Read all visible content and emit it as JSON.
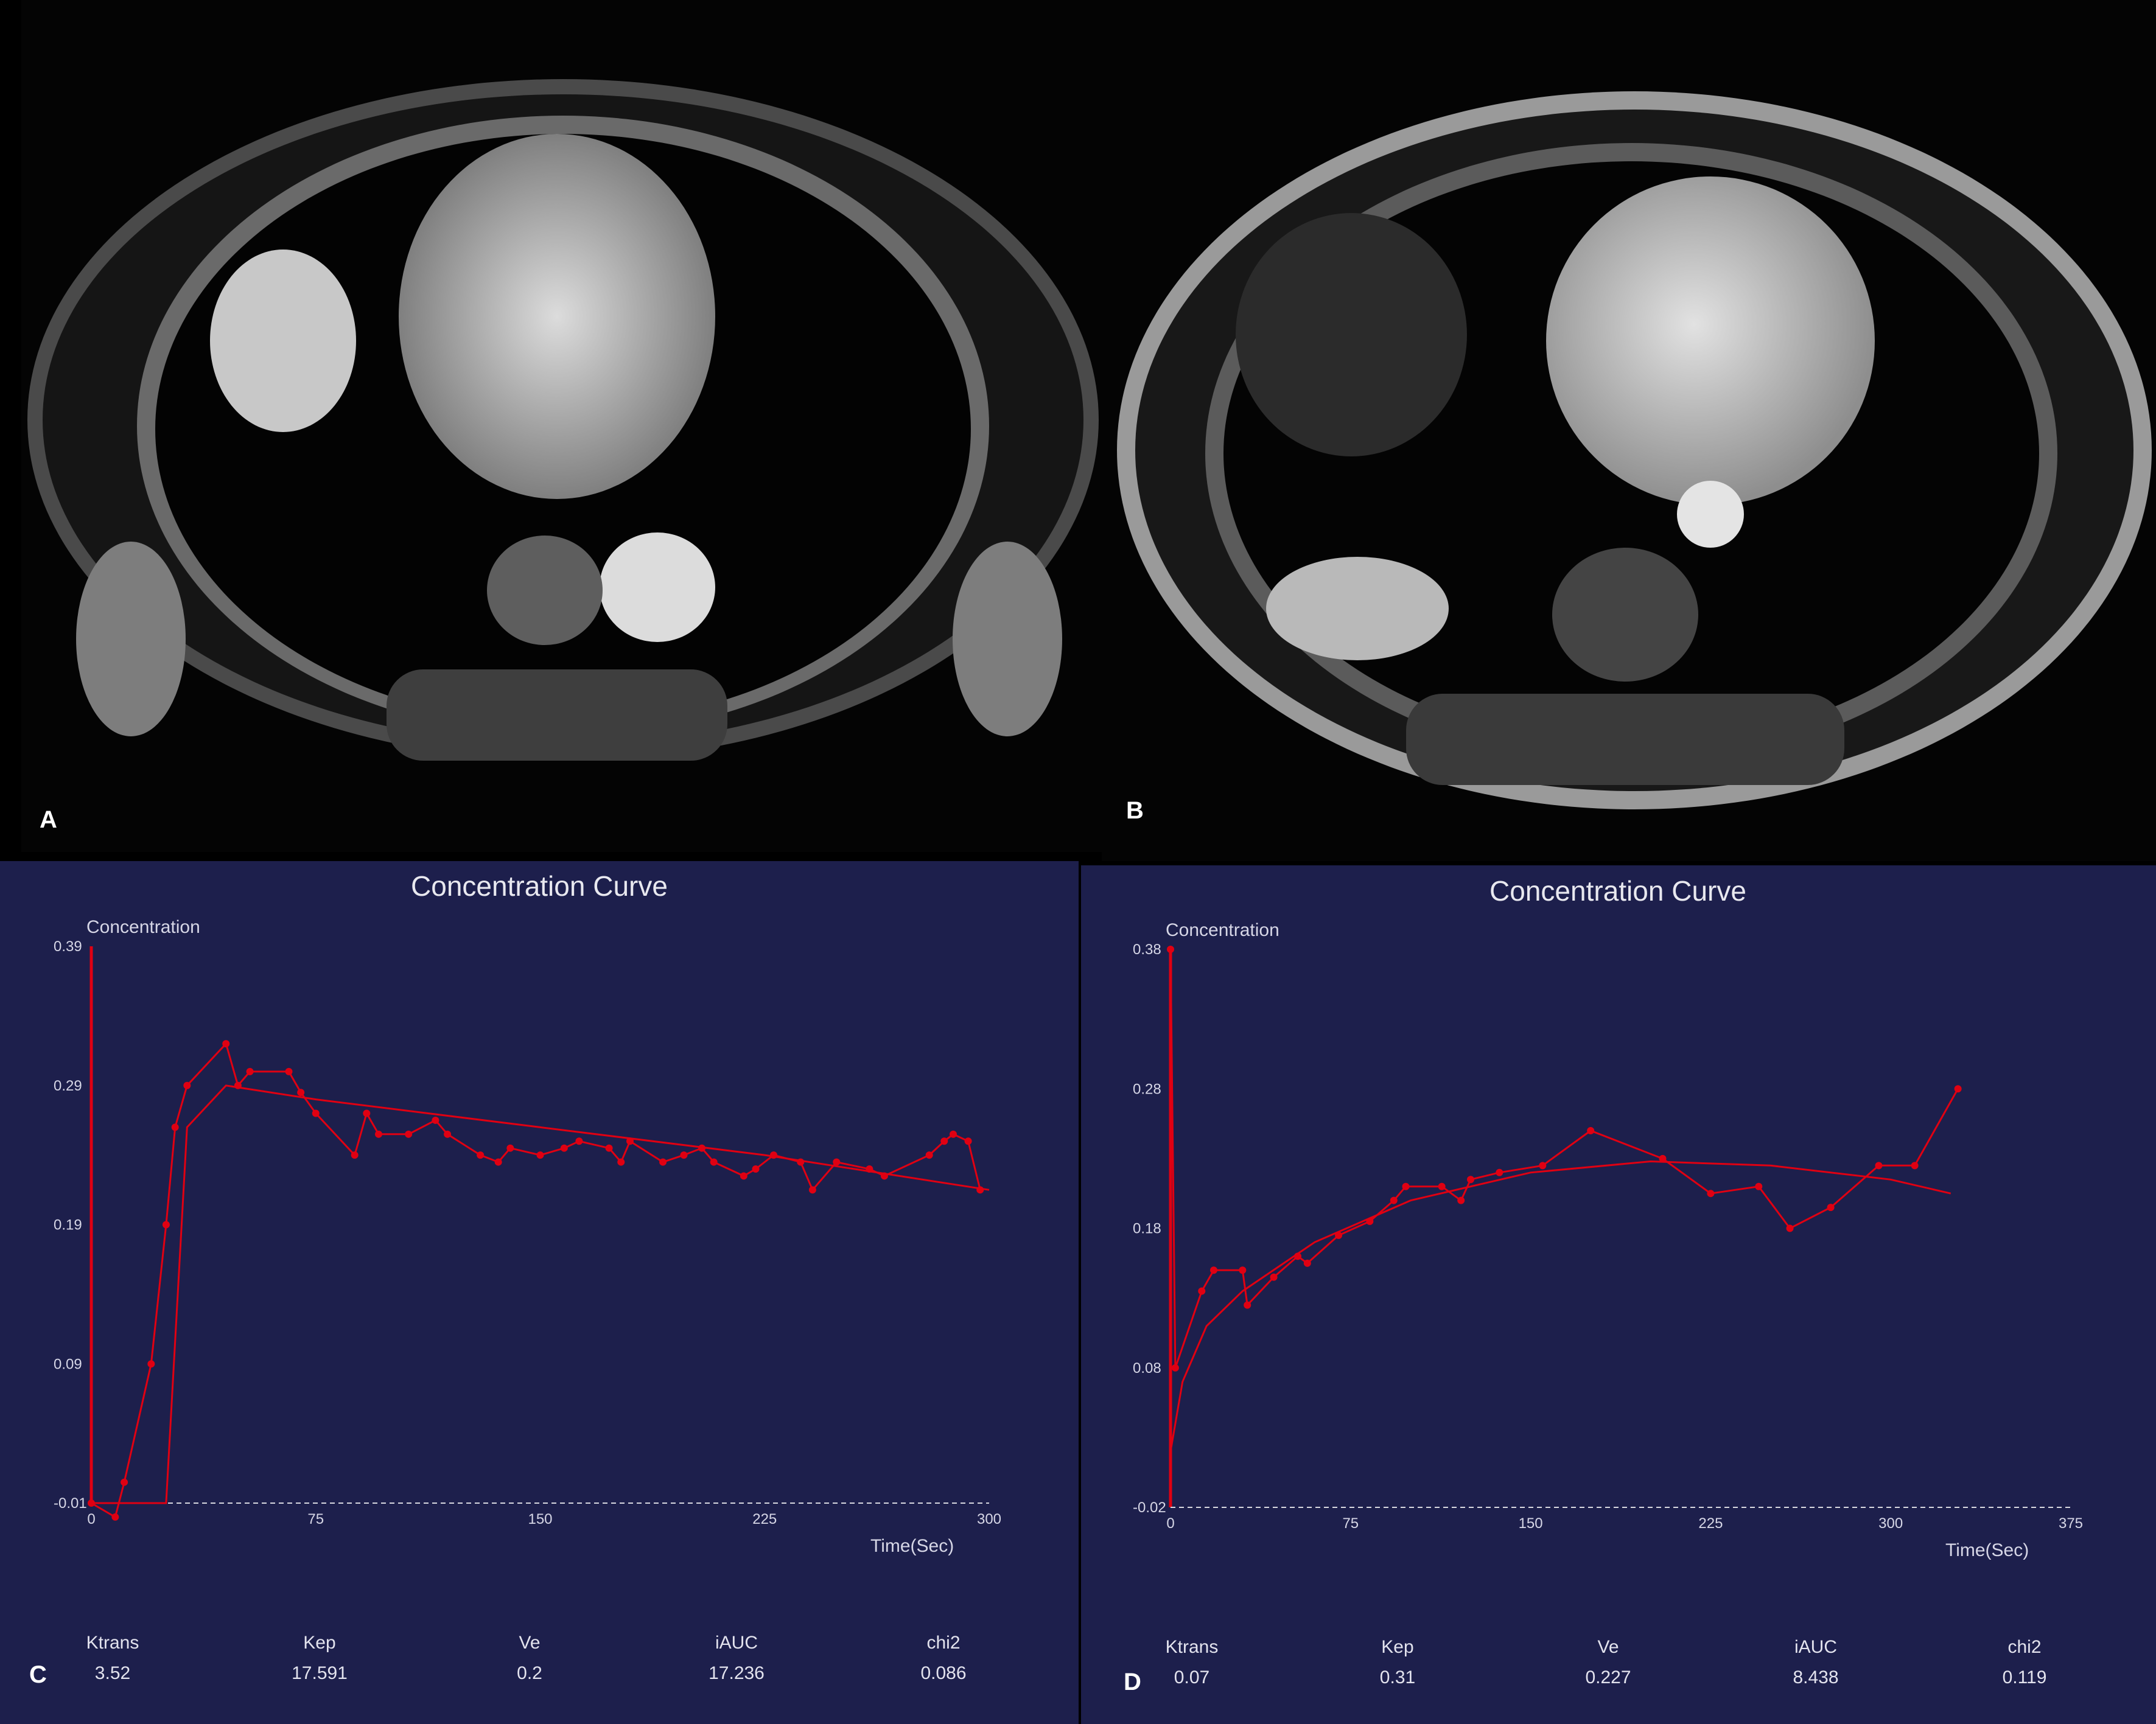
{
  "panels": {
    "A": {
      "letter": "A"
    },
    "B": {
      "letter": "B"
    },
    "C": {
      "letter": "C"
    },
    "D": {
      "letter": "D"
    }
  },
  "colors": {
    "curve": "#e00012",
    "background": "#1d1f4c",
    "text": "#e3e3ee"
  },
  "chart_data": [
    {
      "type": "line",
      "panel": "C",
      "title": "Concentration Curve",
      "ylabel": "Concentration",
      "xlabel": "Time(Sec)",
      "xlim": [
        0,
        300
      ],
      "ylim": [
        -0.01,
        0.39
      ],
      "xticks": [
        0,
        75,
        150,
        225,
        300
      ],
      "yticks": [
        -0.01,
        0.09,
        0.19,
        0.29,
        0.39
      ],
      "grid": false,
      "baseline": -0.01,
      "series": [
        {
          "kind": "measured",
          "x": [
            0,
            8,
            11,
            20,
            25,
            28,
            32,
            45,
            49,
            53,
            66,
            70,
            75,
            88,
            92,
            96,
            106,
            115,
            119,
            130,
            136,
            140,
            150,
            158,
            163,
            173,
            177,
            180,
            191,
            198,
            204,
            208,
            218,
            222,
            228,
            237,
            241,
            249,
            260,
            265,
            280,
            285,
            288,
            293,
            297
          ],
          "y": [
            -0.01,
            -0.02,
            0.005,
            0.09,
            0.19,
            0.26,
            0.29,
            0.32,
            0.29,
            0.3,
            0.3,
            0.285,
            0.27,
            0.24,
            0.27,
            0.255,
            0.255,
            0.265,
            0.255,
            0.24,
            0.235,
            0.245,
            0.24,
            0.245,
            0.25,
            0.245,
            0.235,
            0.25,
            0.235,
            0.24,
            0.245,
            0.235,
            0.225,
            0.23,
            0.24,
            0.235,
            0.215,
            0.235,
            0.23,
            0.225,
            0.24,
            0.25,
            0.255,
            0.25,
            0.215
          ]
        },
        {
          "kind": "fit",
          "x": [
            0,
            25,
            32,
            45,
            75,
            150,
            225,
            300
          ],
          "y": [
            -0.01,
            -0.01,
            0.26,
            0.29,
            0.28,
            0.26,
            0.24,
            0.215
          ]
        }
      ],
      "params": [
        {
          "label": "Ktrans",
          "value": "3.52"
        },
        {
          "label": "Kep",
          "value": "17.591"
        },
        {
          "label": "Ve",
          "value": "0.2"
        },
        {
          "label": "iAUC",
          "value": "17.236"
        },
        {
          "label": "chi2",
          "value": "0.086"
        }
      ]
    },
    {
      "type": "line",
      "panel": "D",
      "title": "Concentration Curve",
      "ylabel": "Concentration",
      "xlabel": "Time(Sec)",
      "xlim": [
        0,
        375
      ],
      "ylim": [
        -0.02,
        0.38
      ],
      "xticks": [
        0,
        75,
        150,
        225,
        300,
        375
      ],
      "yticks": [
        -0.02,
        0.08,
        0.18,
        0.28,
        0.38
      ],
      "grid": false,
      "baseline": -0.02,
      "series": [
        {
          "kind": "measured",
          "x": [
            0,
            2,
            13,
            18,
            30,
            32,
            43,
            53,
            57,
            70,
            83,
            93,
            98,
            113,
            121,
            125,
            137,
            155,
            175,
            205,
            225,
            245,
            258,
            275,
            295,
            310,
            328
          ],
          "y": [
            0.38,
            0.08,
            0.135,
            0.15,
            0.15,
            0.125,
            0.145,
            0.16,
            0.155,
            0.175,
            0.185,
            0.2,
            0.21,
            0.21,
            0.2,
            0.215,
            0.22,
            0.225,
            0.25,
            0.23,
            0.205,
            0.21,
            0.18,
            0.195,
            0.225,
            0.225,
            0.28
          ]
        },
        {
          "kind": "fit",
          "x": [
            0,
            5,
            15,
            30,
            60,
            100,
            150,
            200,
            250,
            300,
            325
          ],
          "y": [
            0.02,
            0.07,
            0.11,
            0.135,
            0.17,
            0.2,
            0.22,
            0.228,
            0.225,
            0.215,
            0.205
          ]
        }
      ],
      "params": [
        {
          "label": "Ktrans",
          "value": "0.07"
        },
        {
          "label": "Kep",
          "value": "0.31"
        },
        {
          "label": "Ve",
          "value": "0.227"
        },
        {
          "label": "iAUC",
          "value": "8.438"
        },
        {
          "label": "chi2",
          "value": "0.119"
        }
      ]
    }
  ]
}
